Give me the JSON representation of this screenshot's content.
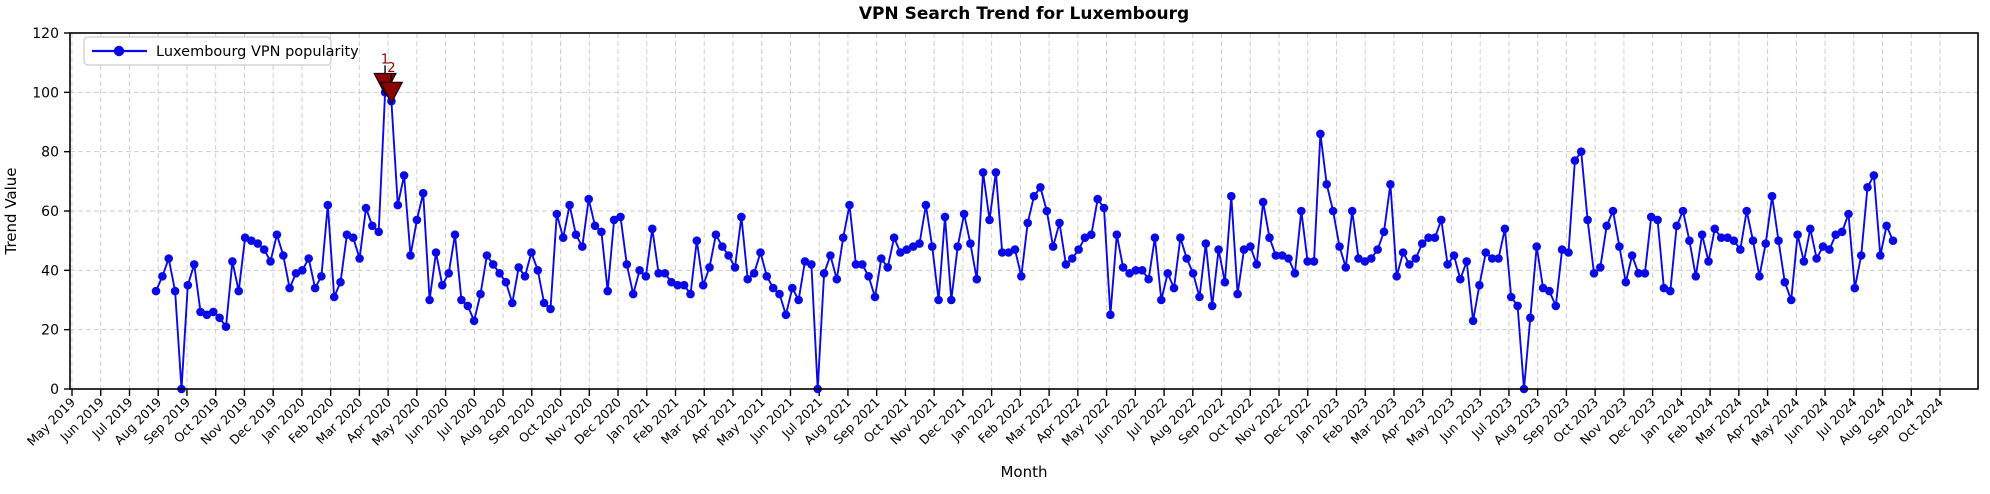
{
  "title": "VPN Search Trend for Luxembourg",
  "legend": {
    "label": "Luxembourg VPN popularity",
    "position": "upper left"
  },
  "colors": {
    "line": "#0a0ae6",
    "marker": "#0a0ae6",
    "annotation": "#8b0000",
    "grid": "#c9c9c9",
    "axis": "#000000",
    "background": "#ffffff"
  },
  "chart_data": {
    "type": "line",
    "title": "VPN Search Trend for Luxembourg",
    "xlabel": "Month",
    "ylabel": "Trend Value",
    "ylim": [
      0,
      120
    ],
    "yticks": [
      0,
      20,
      40,
      60,
      80,
      100,
      120
    ],
    "grid": true,
    "x_tick_labels": [
      "May 2019",
      "Jun 2019",
      "Jul 2019",
      "Aug 2019",
      "Sep 2019",
      "Oct 2019",
      "Nov 2019",
      "Dec 2019",
      "Jan 2020",
      "Feb 2020",
      "Mar 2020",
      "Apr 2020",
      "May 2020",
      "Jun 2020",
      "Jul 2020",
      "Aug 2020",
      "Sep 2020",
      "Oct 2020",
      "Nov 2020",
      "Dec 2020",
      "Jan 2021",
      "Feb 2021",
      "Mar 2021",
      "Apr 2021",
      "May 2021",
      "Jun 2021",
      "Jul 2021",
      "Aug 2021",
      "Sep 2021",
      "Oct 2021",
      "Nov 2021",
      "Dec 2021",
      "Jan 2022",
      "Feb 2022",
      "Mar 2022",
      "Apr 2022",
      "May 2022",
      "Jun 2022",
      "Jul 2022",
      "Aug 2022",
      "Sep 2022",
      "Oct 2022",
      "Nov 2022",
      "Dec 2022",
      "Jan 2023",
      "Feb 2023",
      "Mar 2023",
      "Apr 2023",
      "May 2023",
      "Jun 2023",
      "Jul 2023",
      "Aug 2023",
      "Sep 2023",
      "Oct 2023",
      "Nov 2023",
      "Dec 2023",
      "Jan 2024",
      "Feb 2024",
      "Mar 2024",
      "Apr 2024",
      "May 2024",
      "Jun 2024",
      "Jul 2024",
      "Aug 2024",
      "Sep 2024",
      "Oct 2024"
    ],
    "series": [
      {
        "name": "Luxembourg VPN popularity",
        "frequency": "weekly",
        "start_label": "Aug 2019",
        "end_label": "Aug 2024",
        "values": [
          33,
          38,
          44,
          33,
          0,
          35,
          42,
          26,
          25,
          26,
          24,
          21,
          43,
          33,
          51,
          50,
          49,
          47,
          43,
          52,
          45,
          34,
          39,
          40,
          44,
          34,
          38,
          62,
          31,
          36,
          52,
          51,
          44,
          61,
          55,
          53,
          100,
          97,
          62,
          72,
          45,
          57,
          66,
          30,
          46,
          35,
          39,
          52,
          30,
          28,
          23,
          32,
          45,
          42,
          39,
          36,
          29,
          41,
          38,
          46,
          40,
          29,
          27,
          59,
          51,
          62,
          52,
          48,
          64,
          55,
          53,
          33,
          57,
          58,
          42,
          32,
          40,
          38,
          54,
          39,
          39,
          36,
          35,
          35,
          32,
          50,
          35,
          41,
          52,
          48,
          45,
          41,
          58,
          37,
          39,
          46,
          38,
          34,
          32,
          25,
          34,
          30,
          43,
          42,
          0,
          39,
          45,
          37,
          51,
          62,
          42,
          42,
          38,
          31,
          44,
          41,
          51,
          46,
          47,
          48,
          49,
          62,
          48,
          30,
          58,
          30,
          48,
          59,
          49,
          37,
          73,
          57,
          73,
          46,
          46,
          47,
          38,
          56,
          65,
          68,
          60,
          48,
          56,
          42,
          44,
          47,
          51,
          52,
          64,
          61,
          25,
          52,
          41,
          39,
          40,
          40,
          37,
          51,
          30,
          39,
          34,
          51,
          44,
          39,
          31,
          49,
          28,
          47,
          36,
          65,
          32,
          47,
          48,
          42,
          63,
          51,
          45,
          45,
          44,
          39,
          60,
          43,
          43,
          86,
          69,
          60,
          48,
          41,
          60,
          44,
          43,
          44,
          47,
          53,
          69,
          38,
          46,
          42,
          44,
          49,
          51,
          51,
          57,
          42,
          45,
          37,
          43,
          23,
          35,
          46,
          44,
          44,
          54,
          31,
          28,
          0,
          24,
          48,
          34,
          33,
          28,
          47,
          46,
          77,
          80,
          57,
          39,
          41,
          55,
          60,
          48,
          36,
          45,
          39,
          39,
          58,
          57,
          34,
          33,
          55,
          60,
          50,
          38,
          52,
          43,
          54,
          51,
          51,
          50,
          47,
          60,
          50,
          38,
          49,
          65,
          50,
          36,
          30,
          52,
          43,
          54,
          44,
          48,
          47,
          52,
          53,
          59,
          34,
          45,
          68,
          72,
          45,
          55,
          50
        ]
      }
    ],
    "annotations": [
      {
        "label": "1",
        "point_index": 36,
        "value": 100
      },
      {
        "label": "2",
        "point_index": 37,
        "value": 97
      }
    ]
  }
}
